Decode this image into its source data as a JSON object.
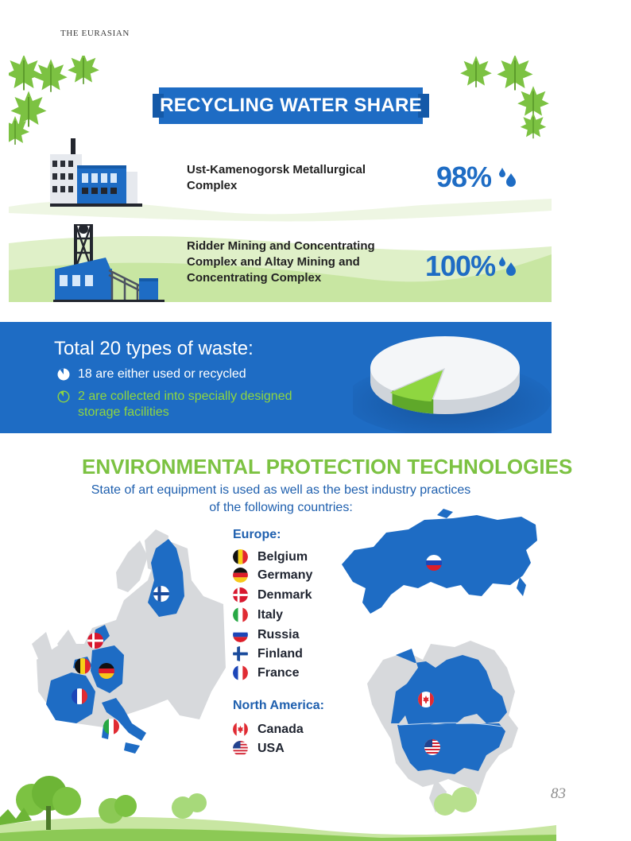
{
  "header": {
    "publication": "THE EURASIAN"
  },
  "water": {
    "title": "RECYCLING WATER SHARE",
    "rows": [
      {
        "name": "Ust-Kamenogorsk Metallurgical Complex",
        "name_lines": [
          "Ust-Kamenogorsk Metallurgical",
          "Complex"
        ],
        "percent": "98%",
        "icon": "metallurgical-plant-icon"
      },
      {
        "name": "Ridder Mining and Concentrating Complex and Altay Mining and Concentrating Complex",
        "name_lines": [
          "Ridder Mining and Concentrating",
          "Complex and Altay Mining and",
          "Concentrating Complex"
        ],
        "percent": "100%",
        "icon": "mining-headframe-icon"
      }
    ]
  },
  "waste": {
    "title": "Total 20 types of waste:",
    "items": [
      {
        "text": "18 are either used or recycled",
        "text_lines": [
          "18 are either used or recycled"
        ],
        "icon": "pie-large-share-icon"
      },
      {
        "text": "2 are collected into specially designed storage facilities",
        "text_lines": [
          "2 are collected into specially designed",
          "storage facilities"
        ],
        "icon": "pie-small-share-icon"
      }
    ],
    "pie": {
      "total": 20,
      "used_or_recycled": 18,
      "stored": 2
    }
  },
  "tech": {
    "title": "ENVIRONMENTAL PROTECTION TECHNOLOGIES",
    "subtitle_lines": [
      "State of art equipment is used as well as the best industry practices",
      "of the following countries:"
    ],
    "europe_heading": "Europe:",
    "europe": [
      {
        "name": "Belgium",
        "flag": "belgium-flag-icon"
      },
      {
        "name": "Germany",
        "flag": "germany-flag-icon"
      },
      {
        "name": "Denmark",
        "flag": "denmark-flag-icon"
      },
      {
        "name": "Italy",
        "flag": "italy-flag-icon"
      },
      {
        "name": "Russia",
        "flag": "russia-flag-icon"
      },
      {
        "name": "Finland",
        "flag": "finland-flag-icon"
      },
      {
        "name": "France",
        "flag": "france-flag-icon"
      }
    ],
    "na_heading": "North America:",
    "north_america": [
      {
        "name": "Canada",
        "flag": "canada-flag-icon"
      },
      {
        "name": "USA",
        "flag": "usa-flag-icon"
      }
    ]
  },
  "colors": {
    "brand_blue": "#1e6cc4",
    "leaf_green": "#7cc242",
    "dark_blue": "#1e5fae"
  },
  "footer": {
    "page_number": "83"
  }
}
